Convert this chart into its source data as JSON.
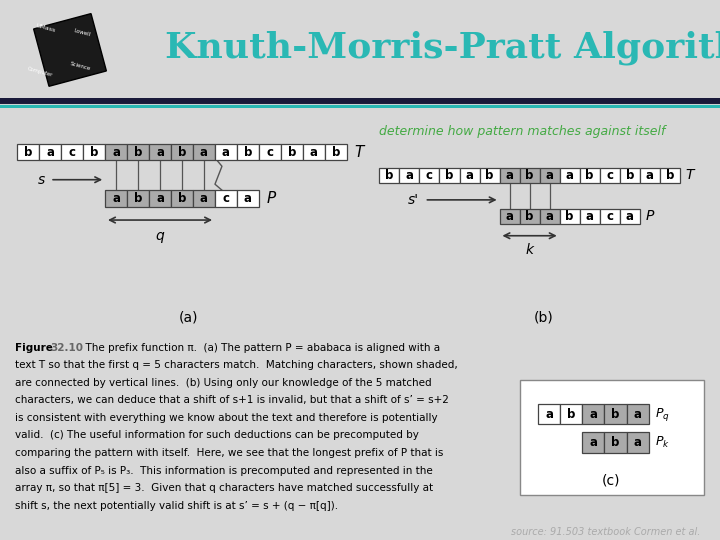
{
  "title": "Knuth-Morris-Pratt Algorithm",
  "title_color": "#2ab8b4",
  "header_bg": "#ffffff",
  "sep_dark": "#1a1a3a",
  "sep_teal": "#2ab8b4",
  "subtitle": "determine how pattern matches against itself",
  "subtitle_color": "#44aa44",
  "source_text": "source: 91.503 textbook Cormen et al.",
  "source_color": "#aaaaaa",
  "content_bg": "#d8d8d8",
  "panel_bg": "#e8e8e8",
  "white_panel": "#f5f5f5",
  "cell_shaded": "#aaaaaa",
  "cell_unshaded": "#ffffff",
  "cell_border": "#444444",
  "arrow_color": "#333333",
  "T_chars_a": [
    "b",
    "a",
    "c",
    "b",
    "a",
    "b",
    "a",
    "b",
    "a",
    "a",
    "b",
    "c",
    "b",
    "a",
    "b"
  ],
  "P_chars_a": [
    "a",
    "b",
    "a",
    "b",
    "a",
    "c",
    "a"
  ],
  "shaded_T_a": [
    4,
    5,
    6,
    7,
    8
  ],
  "shaded_P_a": [
    0,
    1,
    2,
    3,
    4
  ],
  "P_shift_a": 4,
  "T_chars_b": [
    "b",
    "a",
    "c",
    "b",
    "a",
    "b",
    "a",
    "b",
    "a",
    "a",
    "b",
    "c",
    "b",
    "a",
    "b"
  ],
  "P_chars_b": [
    "a",
    "b",
    "a",
    "b",
    "a",
    "c",
    "a"
  ],
  "shaded_T_b": [
    6,
    7,
    8
  ],
  "shaded_P_b": [
    0,
    1,
    2
  ],
  "P_shift_b": 6,
  "Pq_chars": [
    "a",
    "b",
    "a",
    "b",
    "a"
  ],
  "Pk_chars": [
    "a",
    "b",
    "a"
  ],
  "shaded_Pq": [
    2,
    3,
    4
  ],
  "shaded_Pk": [
    0,
    1,
    2
  ],
  "caption_lines": [
    "Figure  32.10  The prefix function π.  (a) The pattern P = ababaca is aligned with a",
    "text T so that the first q = 5 characters match.  Matching characters, shown shaded,",
    "are connected by vertical lines.  (b) Using only our knowledge of the 5 matched",
    "characters, we can deduce that a shift of s+1 is invalid, but that a shift of s’ = s+2",
    "is consistent with everything we know about the text and therefore is potentially",
    "valid.  (c) The useful information for such deductions can be precomputed by",
    "comparing the pattern with itself.  Here, we see that the longest prefix of P that is",
    "also a suffix of P₅ is P₃.  This information is precomputed and represented in the",
    "array π, so that π[5] = 3.  Given that q characters have matched successfully at",
    "shift s, the next potentially valid shift is at s’ = s + (q − π[q])."
  ]
}
